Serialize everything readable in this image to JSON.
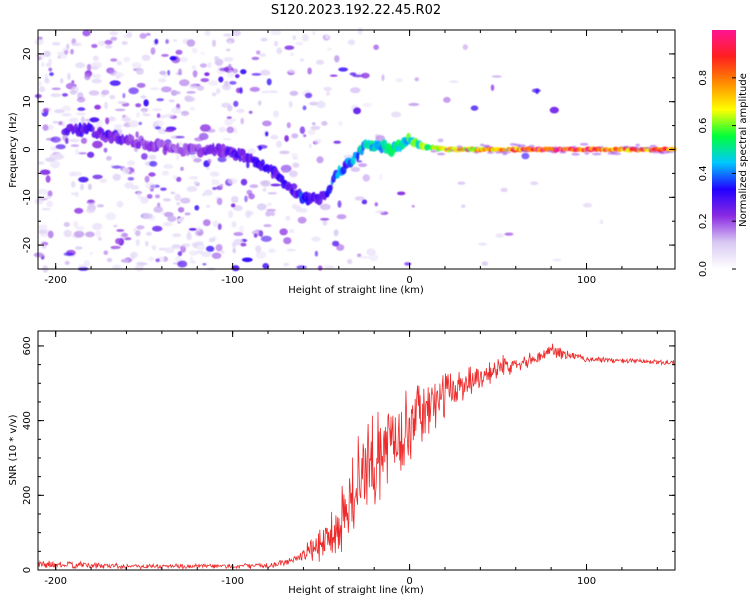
{
  "title": "S120.2023.192.22.45.R02",
  "chart_data": [
    {
      "type": "heatmap",
      "xlabel": "Height of straight line (km)",
      "ylabel": "Frequency (Hz)",
      "xlim": [
        -210,
        150
      ],
      "ylim": [
        -25,
        25
      ],
      "x_ticks": [
        -200,
        -100,
        0,
        100
      ],
      "y_ticks": [
        -20,
        -10,
        0,
        10,
        20
      ],
      "colorbar": {
        "label": "Normalized spectral amplitude",
        "range": [
          0,
          1
        ],
        "ticks": [
          0.0,
          0.2,
          0.4,
          0.6,
          0.8
        ],
        "colormap": [
          "#ffffff",
          "#d9c9f3",
          "#8a2be2",
          "#2200ff",
          "#00c8ff",
          "#00ff3a",
          "#ffff00",
          "#ff8c00",
          "#ff1f1f",
          "#ff1493"
        ]
      },
      "ridge": {
        "x": [
          -180,
          -160,
          -130,
          -110,
          -95,
          -80,
          -70,
          -60,
          -50,
          -45,
          -40,
          -35,
          -30,
          -25,
          -20,
          -15,
          -10,
          -5,
          0,
          5,
          10,
          20,
          40,
          60,
          80,
          100,
          120,
          150
        ],
        "frequency": [
          4,
          2,
          0,
          0,
          -1,
          -4,
          -7,
          -10,
          -10,
          -8,
          -5,
          -3,
          -1,
          1,
          1,
          0.5,
          0,
          1,
          2,
          1,
          0.5,
          0,
          0,
          0,
          0,
          0,
          0,
          0
        ],
        "amplitude": [
          0.3,
          0.25,
          0.2,
          0.25,
          0.3,
          0.3,
          0.3,
          0.35,
          0.3,
          0.35,
          0.45,
          0.4,
          0.45,
          0.5,
          0.5,
          0.5,
          0.5,
          0.55,
          0.55,
          0.6,
          0.65,
          0.7,
          0.8,
          0.85,
          0.95,
          0.9,
          0.85,
          0.85
        ]
      }
    },
    {
      "type": "line",
      "xlabel": "Height of straight line (km)",
      "ylabel": "SNR (10 * v/v)",
      "xlim": [
        -210,
        150
      ],
      "ylim": [
        0,
        640
      ],
      "x_ticks": [
        -200,
        -100,
        0,
        100
      ],
      "y_ticks": [
        0,
        200,
        400,
        600
      ],
      "series": [
        {
          "color": "#ee2b2b",
          "x": [
            -210,
            -180,
            -150,
            -120,
            -100,
            -80,
            -70,
            -60,
            -50,
            -40,
            -35,
            -30,
            -25,
            -20,
            -15,
            -10,
            -5,
            0,
            5,
            10,
            15,
            20,
            30,
            40,
            50,
            60,
            70,
            75,
            80,
            90,
            100,
            120,
            150
          ],
          "envelope": [
            15,
            12,
            10,
            10,
            10,
            12,
            20,
            40,
            70,
            120,
            170,
            220,
            260,
            290,
            320,
            350,
            370,
            390,
            410,
            430,
            450,
            470,
            500,
            520,
            540,
            555,
            565,
            575,
            590,
            575,
            565,
            560,
            555
          ],
          "spread": [
            12,
            10,
            8,
            8,
            8,
            8,
            10,
            25,
            60,
            120,
            140,
            150,
            150,
            140,
            140,
            130,
            120,
            110,
            100,
            90,
            80,
            70,
            55,
            45,
            35,
            25,
            20,
            18,
            30,
            12,
            10,
            8,
            8
          ]
        }
      ]
    }
  ]
}
